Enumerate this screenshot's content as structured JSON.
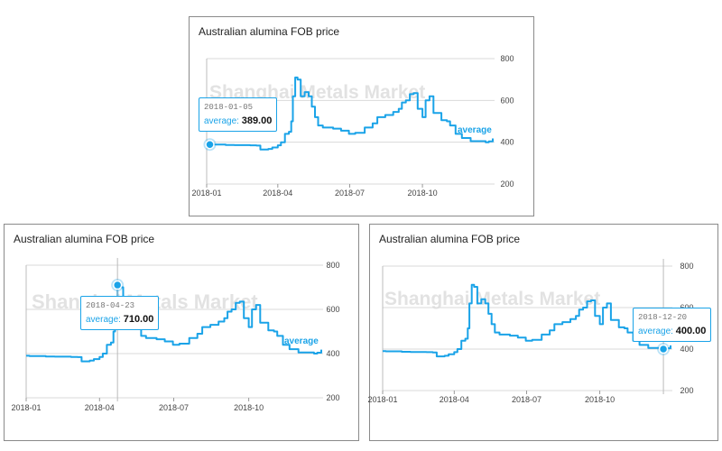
{
  "charts": [
    {
      "title": "Australian alumina FOB price",
      "watermark": "Shanghai Metals Market",
      "tooltip": {
        "date": "2018-01-05",
        "name": "average",
        "sep": ": ",
        "value": "389.00"
      }
    },
    {
      "title": "Australian alumina FOB price",
      "watermark": "Shanghai Metals Market",
      "tooltip": {
        "date": "2018-04-23",
        "name": "average",
        "sep": ": ",
        "value": "710.00"
      }
    },
    {
      "title": "Australian alumina FOB price",
      "watermark": "Shanghai Metals Market",
      "tooltip": {
        "date": "2018-12-20",
        "name": "average",
        "sep": ": ",
        "value": "400.00"
      }
    }
  ],
  "colors": {
    "line": "#1aa3e8",
    "grid": "#d9d9d9",
    "text": "#444444"
  },
  "chart_data": [
    {
      "type": "line",
      "title": "Australian alumina FOB price",
      "x_ticks": [
        "2018-01",
        "2018-04",
        "2018-07",
        "2018-10"
      ],
      "y_ticks": [
        200,
        400,
        600,
        800
      ],
      "ylim": [
        200,
        800
      ],
      "grid": "horizontal",
      "series": [
        {
          "name": "average",
          "x": [
            "2018-01-01",
            "2018-01-05",
            "2018-01-15",
            "2018-01-25",
            "2018-02-05",
            "2018-02-15",
            "2018-02-25",
            "2018-03-05",
            "2018-03-10",
            "2018-03-20",
            "2018-03-25",
            "2018-04-01",
            "2018-04-05",
            "2018-04-10",
            "2018-04-15",
            "2018-04-18",
            "2018-04-20",
            "2018-04-23",
            "2018-04-26",
            "2018-04-30",
            "2018-05-05",
            "2018-05-10",
            "2018-05-14",
            "2018-05-18",
            "2018-05-22",
            "2018-05-28",
            "2018-06-10",
            "2018-06-20",
            "2018-06-30",
            "2018-07-08",
            "2018-07-20",
            "2018-07-30",
            "2018-08-05",
            "2018-08-15",
            "2018-08-25",
            "2018-09-01",
            "2018-09-05",
            "2018-09-10",
            "2018-09-15",
            "2018-09-20",
            "2018-09-25",
            "2018-10-01",
            "2018-10-05",
            "2018-10-10",
            "2018-10-15",
            "2018-10-25",
            "2018-11-01",
            "2018-11-05",
            "2018-11-12",
            "2018-11-20",
            "2018-12-01",
            "2018-12-10",
            "2018-12-20",
            "2018-12-24",
            "2018-12-29"
          ],
          "values": [
            390,
            389,
            389,
            387,
            386,
            386,
            385,
            384,
            365,
            368,
            375,
            385,
            400,
            440,
            450,
            500,
            620,
            710,
            700,
            620,
            640,
            620,
            570,
            520,
            480,
            470,
            465,
            455,
            440,
            445,
            470,
            490,
            520,
            530,
            545,
            560,
            590,
            600,
            630,
            635,
            560,
            520,
            600,
            620,
            540,
            505,
            500,
            480,
            440,
            420,
            405,
            405,
            400,
            404,
            418
          ]
        }
      ],
      "annotations": [
        "Shanghai Metals Market",
        "average"
      ]
    },
    {
      "type": "line",
      "title": "Australian alumina FOB price",
      "x_ticks": [
        "2018-01",
        "2018-04",
        "2018-07",
        "2018-10"
      ],
      "y_ticks": [
        200,
        400,
        600,
        800
      ],
      "ylim": [
        200,
        800
      ],
      "grid": "horizontal",
      "series": [
        {
          "name": "average",
          "x": [
            "2018-01-01",
            "2018-01-05",
            "2018-01-15",
            "2018-01-25",
            "2018-02-05",
            "2018-02-15",
            "2018-02-25",
            "2018-03-05",
            "2018-03-10",
            "2018-03-20",
            "2018-03-25",
            "2018-04-01",
            "2018-04-05",
            "2018-04-10",
            "2018-04-15",
            "2018-04-18",
            "2018-04-20",
            "2018-04-23",
            "2018-04-26",
            "2018-04-30",
            "2018-05-05",
            "2018-05-10",
            "2018-05-14",
            "2018-05-18",
            "2018-05-22",
            "2018-05-28",
            "2018-06-10",
            "2018-06-20",
            "2018-06-30",
            "2018-07-08",
            "2018-07-20",
            "2018-07-30",
            "2018-08-05",
            "2018-08-15",
            "2018-08-25",
            "2018-09-01",
            "2018-09-05",
            "2018-09-10",
            "2018-09-15",
            "2018-09-20",
            "2018-09-25",
            "2018-10-01",
            "2018-10-05",
            "2018-10-10",
            "2018-10-15",
            "2018-10-25",
            "2018-11-01",
            "2018-11-05",
            "2018-11-12",
            "2018-11-20",
            "2018-12-01",
            "2018-12-10",
            "2018-12-20",
            "2018-12-24",
            "2018-12-29"
          ],
          "values": [
            390,
            389,
            389,
            387,
            386,
            386,
            385,
            384,
            365,
            368,
            375,
            385,
            400,
            440,
            450,
            500,
            620,
            710,
            700,
            620,
            640,
            620,
            570,
            520,
            480,
            470,
            465,
            455,
            440,
            445,
            470,
            490,
            520,
            530,
            545,
            560,
            590,
            600,
            630,
            635,
            560,
            520,
            600,
            620,
            540,
            505,
            500,
            480,
            440,
            420,
            405,
            405,
            400,
            404,
            418
          ]
        }
      ],
      "annotations": [
        "Shanghai Metals Market",
        "average"
      ]
    },
    {
      "type": "line",
      "title": "Australian alumina FOB price",
      "x_ticks": [
        "2018-01",
        "2018-04",
        "2018-07",
        "2018-10"
      ],
      "y_ticks": [
        200,
        400,
        600,
        800
      ],
      "ylim": [
        200,
        800
      ],
      "grid": "horizontal",
      "series": [
        {
          "name": "average",
          "x": [
            "2018-01-01",
            "2018-01-05",
            "2018-01-15",
            "2018-01-25",
            "2018-02-05",
            "2018-02-15",
            "2018-02-25",
            "2018-03-05",
            "2018-03-10",
            "2018-03-20",
            "2018-03-25",
            "2018-04-01",
            "2018-04-05",
            "2018-04-10",
            "2018-04-15",
            "2018-04-18",
            "2018-04-20",
            "2018-04-23",
            "2018-04-26",
            "2018-04-30",
            "2018-05-05",
            "2018-05-10",
            "2018-05-14",
            "2018-05-18",
            "2018-05-22",
            "2018-05-28",
            "2018-06-10",
            "2018-06-20",
            "2018-06-30",
            "2018-07-08",
            "2018-07-20",
            "2018-07-30",
            "2018-08-05",
            "2018-08-15",
            "2018-08-25",
            "2018-09-01",
            "2018-09-05",
            "2018-09-10",
            "2018-09-15",
            "2018-09-20",
            "2018-09-25",
            "2018-10-01",
            "2018-10-05",
            "2018-10-10",
            "2018-10-15",
            "2018-10-25",
            "2018-11-01",
            "2018-11-05",
            "2018-11-12",
            "2018-11-20",
            "2018-12-01",
            "2018-12-10",
            "2018-12-20",
            "2018-12-24",
            "2018-12-29"
          ],
          "values": [
            390,
            389,
            389,
            387,
            386,
            386,
            385,
            384,
            365,
            368,
            375,
            385,
            400,
            440,
            450,
            500,
            620,
            710,
            700,
            620,
            640,
            620,
            570,
            520,
            480,
            470,
            465,
            455,
            440,
            445,
            470,
            490,
            520,
            530,
            545,
            560,
            590,
            600,
            630,
            635,
            560,
            520,
            600,
            620,
            540,
            505,
            500,
            480,
            440,
            420,
            405,
            405,
            400,
            404,
            418
          ]
        }
      ],
      "annotations": [
        "Shanghai Metals Market",
        "average"
      ]
    }
  ]
}
